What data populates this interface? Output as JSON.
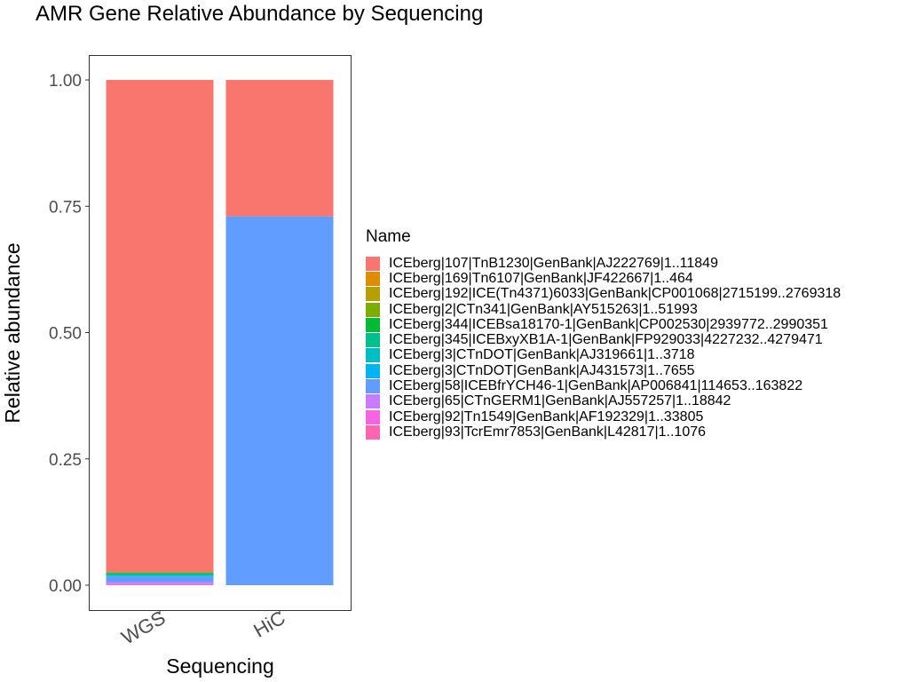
{
  "chart_data": {
    "type": "bar",
    "stacked": true,
    "title": "AMR Gene Relative Abundance by Sequencing",
    "xlabel": "Sequencing",
    "ylabel": "Relative abundance",
    "categories": [
      "WGS",
      "HiC"
    ],
    "ylim": [
      0,
      1
    ],
    "yticks": [
      0,
      0.25,
      0.5,
      0.75,
      1
    ],
    "ytick_labels": [
      "0.00",
      "0.25",
      "0.50",
      "0.75",
      "1.00"
    ],
    "grid": false,
    "legend_title": "Name",
    "legend_position": "right",
    "series": [
      {
        "name": "ICEberg|107|TnB1230|GenBank|AJ222769|1..11849",
        "color": "#F8766D",
        "values": [
          0.974,
          0.27
        ]
      },
      {
        "name": "ICEberg|169|Tn6107|GenBank|JF422667|1..464",
        "color": "#DE8C00",
        "values": [
          0,
          0
        ]
      },
      {
        "name": "ICEberg|192|ICE(Tn4371)6033|GenBank|CP001068|2715199..2769318",
        "color": "#B79F00",
        "values": [
          0,
          0
        ]
      },
      {
        "name": "ICEberg|2|CTn341|GenBank|AY515263|1..51993",
        "color": "#7CAE00",
        "values": [
          0.002,
          0
        ]
      },
      {
        "name": "ICEberg|344|ICEBsa18170-1|GenBank|CP002530|2939772..2990351",
        "color": "#00BA38",
        "values": [
          0.002,
          0
        ]
      },
      {
        "name": "ICEberg|345|ICEBxyXB1A-1|GenBank|FP929033|4227232..4279471",
        "color": "#00C08B",
        "values": [
          0,
          0
        ]
      },
      {
        "name": "ICEberg|3|CTnDOT|GenBank|AJ319661|1..3718",
        "color": "#00BFC4",
        "values": [
          0.003,
          0
        ]
      },
      {
        "name": "ICEberg|3|CTnDOT|GenBank|AJ431573|1..7655",
        "color": "#00B4F0",
        "values": [
          0.002,
          0
        ]
      },
      {
        "name": "ICEberg|58|ICEBfrYCH46-1|GenBank|AP006841|114653..163822",
        "color": "#619CFF",
        "values": [
          0.011,
          0.73
        ]
      },
      {
        "name": "ICEberg|65|CTnGERM1|GenBank|AJ557257|1..18842",
        "color": "#C77CFF",
        "values": [
          0.003,
          0
        ]
      },
      {
        "name": "ICEberg|92|Tn1549|GenBank|AF192329|1..33805",
        "color": "#F564E3",
        "values": [
          0.002,
          0
        ]
      },
      {
        "name": "ICEberg|93|TcrEmr7853|GenBank|L42817|1..1076",
        "color": "#FF64B0",
        "values": [
          0.001,
          0
        ]
      }
    ]
  }
}
